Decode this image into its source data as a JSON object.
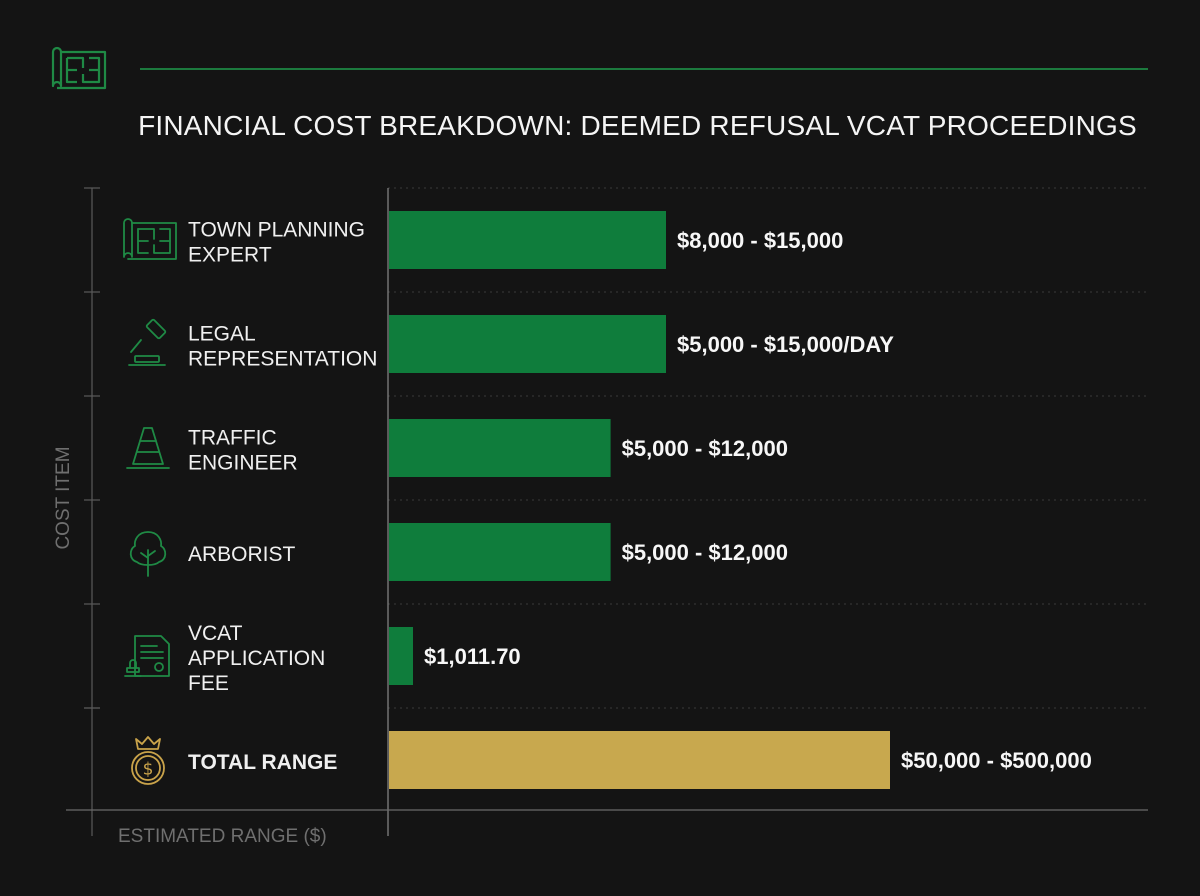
{
  "header": {
    "title": "FINANCIAL COST BREAKDOWN: DEEMED REFUSAL VCAT PROCEEDINGS",
    "logo_icon": "blueprint-icon"
  },
  "colors": {
    "background": "#141414",
    "bar": "#0f7d3c",
    "total_bar": "#c8a84e",
    "accent_line": "#1c7a3e",
    "icon_green": "#1f8a45",
    "icon_gold": "#c9a34a"
  },
  "chart_data": {
    "type": "bar",
    "orientation": "horizontal",
    "title": "FINANCIAL COST BREAKDOWN: DEEMED REFUSAL VCAT PROCEEDINGS",
    "xlabel": "ESTIMATED RANGE ($)",
    "ylabel": "COST ITEM",
    "grid": true,
    "xlim": [
      0,
      500000
    ],
    "categories": [
      [
        "TOWN PLANNING",
        "EXPERT"
      ],
      [
        "LEGAL",
        "REPRESENTATION"
      ],
      [
        "TRAFFIC",
        "ENGINEER"
      ],
      [
        "ARBORIST"
      ],
      [
        "VCAT",
        "APPLICATION",
        "FEE"
      ],
      [
        "TOTAL RANGE"
      ]
    ],
    "icons": [
      "blueprint-icon",
      "gavel-icon",
      "traffic-cone-icon",
      "tree-icon",
      "document-stamp-icon",
      "money-crown-icon"
    ],
    "values": [
      15000,
      15000,
      12000,
      12000,
      1011.7,
      500000
    ],
    "value_labels": [
      "$8,000 - $15,000",
      "$5,000 - $15,000/DAY",
      "$5,000 - $12,000",
      "$5,000 - $12,000",
      "$1,011.70",
      "$50,000 - $500,000"
    ]
  }
}
